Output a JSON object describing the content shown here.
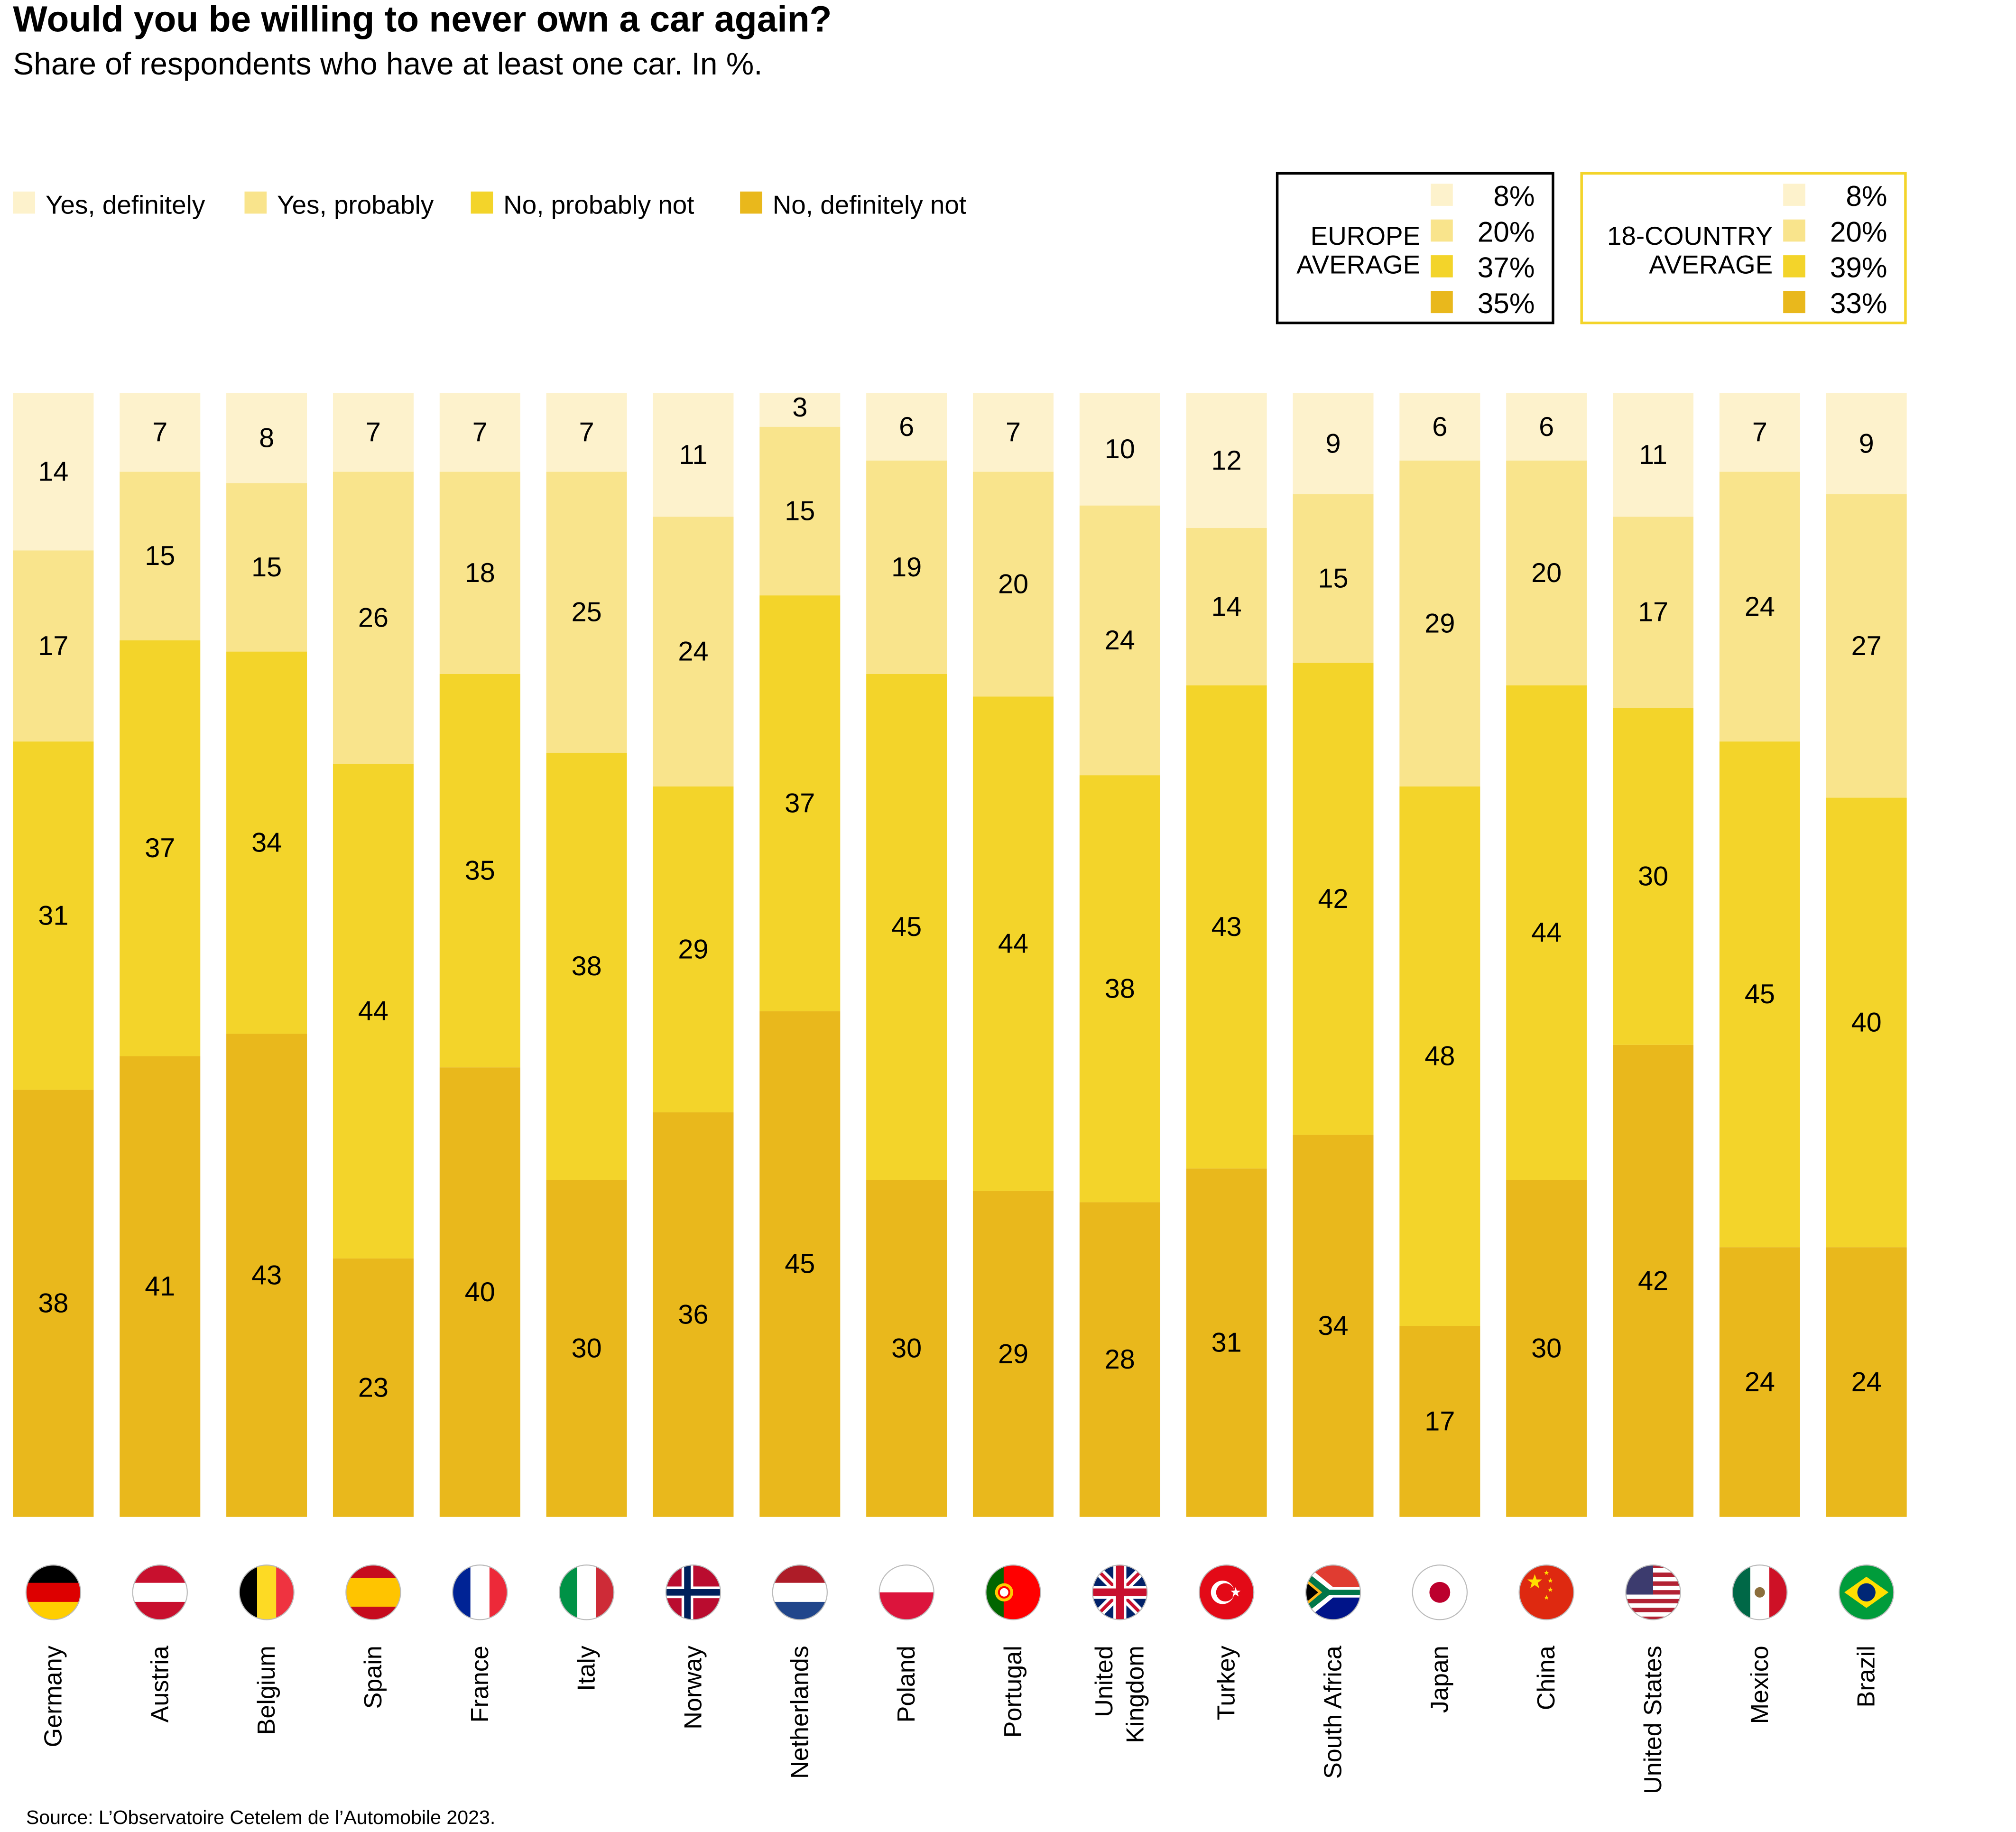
{
  "chart_data": {
    "type": "bar",
    "stacked": true,
    "title": "Would you be willing to never own a car again?",
    "subtitle": "Share of respondents who have at least one car. In %.",
    "source": "Source: L’Observatoire Cetelem de l’Automobile 2023.",
    "legend_position": "top-left",
    "grid": false,
    "colors": [
      "#fdf2cc",
      "#f9e48c",
      "#f3d42a",
      "#e9b81c"
    ],
    "categories": [
      "Germany",
      "Austria",
      "Belgium",
      "Spain",
      "France",
      "Italy",
      "Norway",
      "Netherlands",
      "Poland",
      "Portugal",
      "United Kingdom",
      "Turkey",
      "South Africa",
      "Japan",
      "China",
      "United States",
      "Mexico",
      "Brazil"
    ],
    "series": [
      {
        "name": "Yes, definitely",
        "values": [
          14,
          7,
          8,
          7,
          7,
          7,
          11,
          3,
          6,
          7,
          10,
          12,
          9,
          6,
          6,
          11,
          7,
          9
        ]
      },
      {
        "name": "Yes, probably",
        "values": [
          17,
          15,
          15,
          26,
          18,
          25,
          24,
          15,
          19,
          20,
          24,
          14,
          15,
          29,
          20,
          17,
          24,
          27
        ]
      },
      {
        "name": "No, probably not",
        "values": [
          31,
          37,
          34,
          44,
          35,
          38,
          29,
          37,
          45,
          44,
          38,
          43,
          42,
          48,
          44,
          30,
          45,
          40
        ]
      },
      {
        "name": "No, definitely not",
        "values": [
          38,
          41,
          43,
          23,
          40,
          30,
          36,
          45,
          30,
          29,
          28,
          31,
          34,
          17,
          30,
          42,
          24,
          24
        ]
      }
    ],
    "averages": [
      {
        "label_line1": "EUROPE",
        "label_line2": "AVERAGE",
        "values": [
          "8%",
          "20%",
          "37%",
          "35%"
        ],
        "border_color": "#000000"
      },
      {
        "label_line1": "18-COUNTRY",
        "label_line2": "AVERAGE",
        "values": [
          "8%",
          "20%",
          "39%",
          "33%"
        ],
        "border_color": "#f3d42a"
      }
    ],
    "flags": [
      "germany-flag",
      "austria-flag",
      "belgium-flag",
      "spain-flag",
      "france-flag",
      "italy-flag",
      "norway-flag",
      "netherlands-flag",
      "poland-flag",
      "portugal-flag",
      "united-kingdom-flag",
      "turkey-flag",
      "south-africa-flag",
      "japan-flag",
      "china-flag",
      "united-states-flag",
      "mexico-flag",
      "brazil-flag"
    ]
  }
}
